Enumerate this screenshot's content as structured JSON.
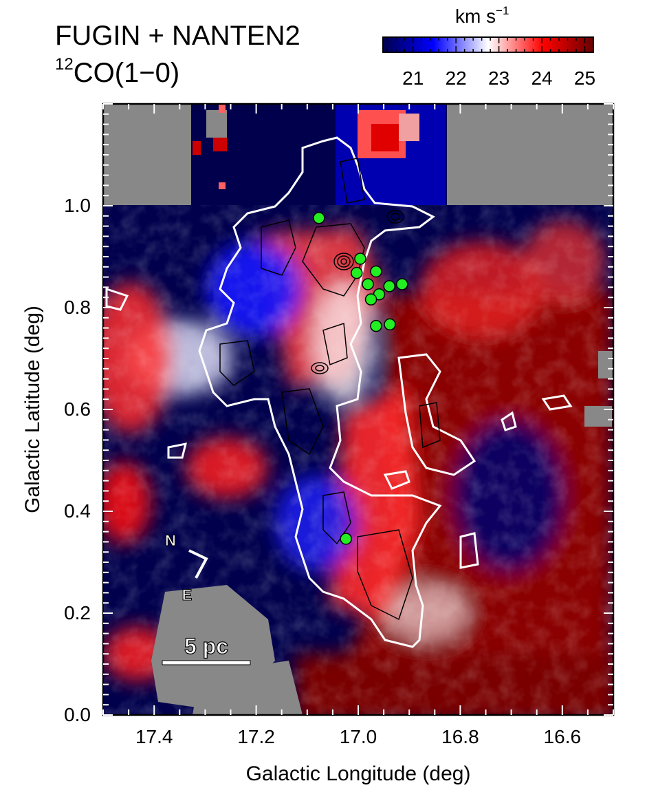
{
  "title": {
    "line1": "FUGIN + NANTEN2",
    "line2_sup": "12",
    "line2_main": "CO(1−0)"
  },
  "colorbar": {
    "label": "km s",
    "label_sup": "−1",
    "range": [
      20.3,
      25.2
    ],
    "ticks": [
      "21",
      "22",
      "23",
      "24",
      "25"
    ],
    "colors": [
      "#00004d",
      "#0000ff",
      "#ffffff",
      "#ff0000",
      "#6b0000"
    ]
  },
  "chart_data": {
    "type": "heatmap",
    "title": "FUGIN + NANTEN2 12CO(1−0)",
    "xlabel": "Galactic Longitude (deg)",
    "ylabel": "Galactic Latitude (deg)",
    "xlim": [
      17.5,
      16.5
    ],
    "ylim": [
      0.0,
      1.2
    ],
    "x_ticks": [
      "17.4",
      "17.2",
      "17.0",
      "16.8",
      "16.6"
    ],
    "x_tick_values": [
      17.4,
      17.2,
      17.0,
      16.8,
      16.6
    ],
    "y_ticks": [
      "0.0",
      "0.2",
      "0.4",
      "0.6",
      "0.8",
      "1.0"
    ],
    "y_tick_values": [
      0.0,
      0.2,
      0.4,
      0.6,
      0.8,
      1.0
    ],
    "colorbar_unit": "km s⁻¹",
    "value_range": [
      20.3,
      25.2
    ],
    "sources": [
      {
        "l": 17.077,
        "b": 0.976
      },
      {
        "l": 16.996,
        "b": 0.896
      },
      {
        "l": 17.003,
        "b": 0.868
      },
      {
        "l": 16.965,
        "b": 0.871
      },
      {
        "l": 16.981,
        "b": 0.846
      },
      {
        "l": 16.939,
        "b": 0.842
      },
      {
        "l": 16.914,
        "b": 0.846
      },
      {
        "l": 16.959,
        "b": 0.826
      },
      {
        "l": 16.975,
        "b": 0.816
      },
      {
        "l": 16.965,
        "b": 0.764
      },
      {
        "l": 16.938,
        "b": 0.767
      },
      {
        "l": 17.024,
        "b": 0.346
      }
    ],
    "annotations": {
      "north": "N",
      "east": "E",
      "scalebar": "5 pc"
    }
  }
}
